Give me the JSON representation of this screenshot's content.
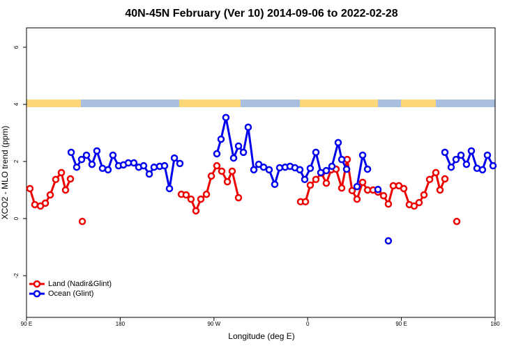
{
  "chart_data": {
    "type": "line",
    "title": "40N-45N February (Ver 10)   2014-09-06 to 2022-02-28",
    "xlabel": "Longitude (deg E)",
    "ylabel": "XCO2 - MLO trend (ppm)",
    "xlim": [
      90,
      540
    ],
    "ylim": [
      -3.46,
      6.68
    ],
    "xticks": [
      {
        "value": 90,
        "label": "90 E"
      },
      180,
      {
        "value": 270,
        "label": "90 W"
      },
      {
        "value": 360,
        "label": "0"
      },
      {
        "value": 450,
        "label": "90 E"
      },
      {
        "value": 540,
        "label": "180"
      }
    ],
    "yticks": [
      -2,
      0,
      2,
      4,
      6
    ],
    "legend": "bottom-left",
    "series": [
      {
        "name": "Land (Nadir&Glint)",
        "color": "#ee0000",
        "x": [
          93.3,
          98,
          103.4,
          108.1,
          112.8,
          118.1,
          123.5,
          127.5,
          132.2,
          null,
          143.6,
          null,
          238.7,
          243.3,
          248,
          252.7,
          257.4,
          262.8,
          267.5,
          272.8,
          277.5,
          282.9,
          287.5,
          293.6,
          null,
          353.2,
          357.9,
          362.5,
          367.9,
          373.3,
          377.9,
          382.6,
          387.3,
          392.7,
          398,
          402.7,
          407.4,
          412.8,
          417.5,
          422.8,
          427.5,
          432.9,
          437.5,
          442.2,
          447.6,
          452.3,
          457.6,
          462.3,
          467,
          471.7,
          477.1,
          483.1,
          487.1,
          491.8,
          null,
          503.2
        ],
        "values": [
          1.05,
          0.49,
          0.44,
          0.54,
          0.83,
          1.37,
          1.61,
          1.0,
          1.39,
          null,
          -0.1,
          null,
          0.85,
          0.83,
          0.68,
          0.27,
          0.68,
          0.85,
          1.49,
          1.85,
          1.66,
          1.29,
          1.66,
          0.73,
          null,
          0.59,
          0.59,
          1.17,
          1.37,
          1.59,
          1.24,
          1.71,
          1.73,
          1.07,
          2.07,
          0.98,
          0.68,
          1.27,
          1.0,
          1.0,
          0.93,
          0.8,
          0.51,
          1.15,
          1.15,
          1.05,
          0.49,
          0.44,
          0.56,
          0.83,
          1.37,
          1.61,
          1.0,
          1.39,
          null,
          -0.1
        ]
      },
      {
        "name": "Ocean (Glint)",
        "color": "#0000ee",
        "x": [
          132.9,
          138.2,
          142.9,
          147.6,
          152.9,
          157.6,
          163,
          168.3,
          173,
          178.4,
          183.1,
          187.8,
          193.1,
          197.8,
          202.5,
          207.9,
          212.5,
          217.9,
          222.6,
          227.3,
          232,
          237.3,
          null,
          272.8,
          276.8,
          281.5,
          288.9,
          293.6,
          298.3,
          302.9,
          308.3,
          313,
          317.7,
          323,
          328.4,
          333.1,
          338.4,
          343.1,
          347.8,
          352.5,
          357.2,
          362.5,
          367.9,
          372.6,
          377.9,
          383.3,
          389.3,
          392.7,
          397.4,
          null,
          407.4,
          412.8,
          417.5,
          null,
          427.5,
          null,
          437.5,
          null,
          491.8,
          497.8,
          502.5,
          507.2,
          512.5,
          517.2,
          522.6,
          527.9,
          532.6,
          538
        ],
        "values": [
          2.32,
          1.8,
          2.07,
          2.22,
          1.9,
          2.37,
          1.76,
          1.71,
          2.22,
          1.85,
          1.88,
          1.95,
          1.95,
          1.8,
          1.85,
          1.56,
          1.8,
          1.83,
          1.85,
          1.05,
          2.12,
          1.93,
          null,
          2.27,
          2.78,
          3.54,
          2.12,
          2.54,
          2.32,
          3.2,
          1.71,
          1.9,
          1.8,
          1.71,
          1.2,
          1.78,
          1.8,
          1.83,
          1.78,
          1.71,
          1.37,
          1.76,
          2.32,
          1.61,
          1.68,
          1.83,
          2.66,
          2.07,
          1.73,
          null,
          1.12,
          2.22,
          1.73,
          null,
          1.02,
          null,
          -0.78,
          null,
          2.32,
          1.8,
          2.07,
          2.22,
          1.9,
          2.37,
          1.76,
          1.71,
          2.22,
          1.85
        ]
      }
    ]
  }
}
